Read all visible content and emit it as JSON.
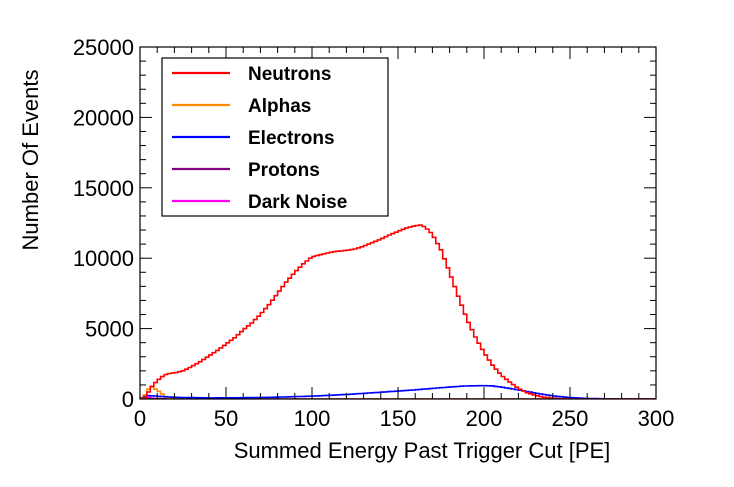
{
  "chart_data": {
    "type": "line",
    "title": "",
    "xlabel": "Summed Energy Past Trigger Cut [PE]",
    "ylabel": "Number Of Events",
    "xlim": [
      0,
      300
    ],
    "ylim": [
      0,
      25000
    ],
    "x_ticks": [
      "0",
      "50",
      "100",
      "150",
      "200",
      "250",
      "300"
    ],
    "y_ticks": [
      "0",
      "5000",
      "10000",
      "15000",
      "20000",
      "25000"
    ],
    "grid": false,
    "legend_position": "top-left",
    "series": [
      {
        "name": "Neutrons",
        "color": "#ff0000",
        "points": [
          [
            0,
            0
          ],
          [
            3,
            100
          ],
          [
            5,
            500
          ],
          [
            7,
            900
          ],
          [
            10,
            1300
          ],
          [
            13,
            1600
          ],
          [
            16,
            1800
          ],
          [
            20,
            1850
          ],
          [
            25,
            2000
          ],
          [
            30,
            2300
          ],
          [
            35,
            2650
          ],
          [
            40,
            3050
          ],
          [
            45,
            3450
          ],
          [
            50,
            3900
          ],
          [
            55,
            4350
          ],
          [
            60,
            4900
          ],
          [
            65,
            5400
          ],
          [
            70,
            6000
          ],
          [
            75,
            6700
          ],
          [
            80,
            7500
          ],
          [
            85,
            8300
          ],
          [
            90,
            9000
          ],
          [
            95,
            9600
          ],
          [
            100,
            10100
          ],
          [
            105,
            10250
          ],
          [
            110,
            10400
          ],
          [
            115,
            10500
          ],
          [
            120,
            10550
          ],
          [
            125,
            10650
          ],
          [
            130,
            10850
          ],
          [
            135,
            11100
          ],
          [
            140,
            11350
          ],
          [
            145,
            11650
          ],
          [
            150,
            11900
          ],
          [
            155,
            12150
          ],
          [
            160,
            12300
          ],
          [
            163,
            12350
          ],
          [
            166,
            12200
          ],
          [
            170,
            11700
          ],
          [
            175,
            10600
          ],
          [
            180,
            9000
          ],
          [
            185,
            7300
          ],
          [
            190,
            5700
          ],
          [
            195,
            4400
          ],
          [
            200,
            3300
          ],
          [
            205,
            2400
          ],
          [
            210,
            1700
          ],
          [
            215,
            1200
          ],
          [
            220,
            750
          ],
          [
            225,
            450
          ],
          [
            230,
            250
          ],
          [
            235,
            120
          ],
          [
            240,
            60
          ],
          [
            245,
            20
          ],
          [
            250,
            0
          ],
          [
            300,
            0
          ]
        ]
      },
      {
        "name": "Alphas",
        "color": "#ff8c00",
        "points": [
          [
            0,
            0
          ],
          [
            3,
            300
          ],
          [
            5,
            700
          ],
          [
            7,
            850
          ],
          [
            9,
            700
          ],
          [
            11,
            550
          ],
          [
            13,
            350
          ],
          [
            15,
            150
          ],
          [
            18,
            50
          ],
          [
            22,
            0
          ],
          [
            300,
            0
          ]
        ]
      },
      {
        "name": "Electrons",
        "color": "#0000ff",
        "points": [
          [
            0,
            0
          ],
          [
            5,
            250
          ],
          [
            10,
            200
          ],
          [
            20,
            120
          ],
          [
            40,
            80
          ],
          [
            60,
            90
          ],
          [
            80,
            130
          ],
          [
            100,
            200
          ],
          [
            120,
            320
          ],
          [
            140,
            480
          ],
          [
            160,
            650
          ],
          [
            180,
            850
          ],
          [
            190,
            930
          ],
          [
            200,
            950
          ],
          [
            205,
            930
          ],
          [
            210,
            850
          ],
          [
            220,
            650
          ],
          [
            230,
            420
          ],
          [
            240,
            220
          ],
          [
            250,
            100
          ],
          [
            260,
            40
          ],
          [
            270,
            15
          ],
          [
            280,
            0
          ],
          [
            300,
            0
          ]
        ]
      },
      {
        "name": "Protons",
        "color": "#800080",
        "points": [
          [
            0,
            0
          ],
          [
            5,
            40
          ],
          [
            10,
            30
          ],
          [
            20,
            10
          ],
          [
            40,
            0
          ],
          [
            300,
            0
          ]
        ]
      },
      {
        "name": "Dark Noise",
        "color": "#ff00ff",
        "points": [
          [
            0,
            0
          ],
          [
            3,
            250
          ],
          [
            5,
            120
          ],
          [
            8,
            30
          ],
          [
            12,
            0
          ],
          [
            300,
            0
          ]
        ]
      }
    ]
  }
}
